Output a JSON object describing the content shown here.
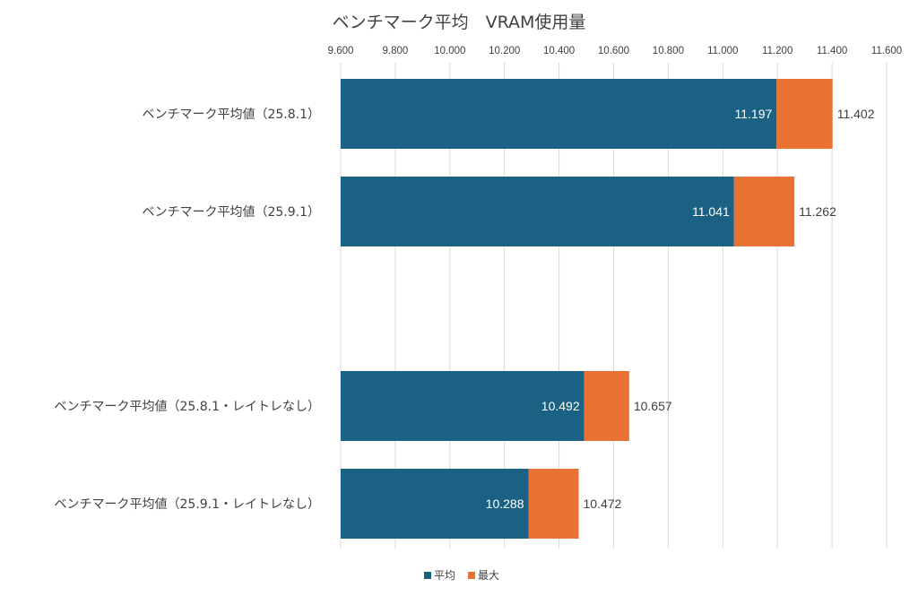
{
  "chart_data": {
    "type": "bar",
    "orientation": "horizontal",
    "title": "ベンチマーク平均　VRAM使用量",
    "categories": [
      "ベンチマーク平均値（25.8.1）",
      "ベンチマーク平均値（25.9.1）",
      "ベンチマーク平均値（25.8.1・レイトレなし）",
      "ベンチマーク平均値（25.9.1・レイトレなし）"
    ],
    "series": [
      {
        "name": "平均",
        "values": [
          11.197,
          11.041,
          10.492,
          10.288
        ],
        "color": "#1a6184"
      },
      {
        "name": "最大",
        "values": [
          11.402,
          11.262,
          10.657,
          10.472
        ],
        "color": "#e97132"
      }
    ],
    "x_ticks": [
      "9.600",
      "9.800",
      "10.000",
      "10.200",
      "10.400",
      "10.600",
      "10.800",
      "11.000",
      "11.200",
      "11.400",
      "11.600"
    ],
    "xlim": [
      9.6,
      11.6
    ],
    "grid": true,
    "legend": "bottom",
    "axis_position": "top"
  }
}
